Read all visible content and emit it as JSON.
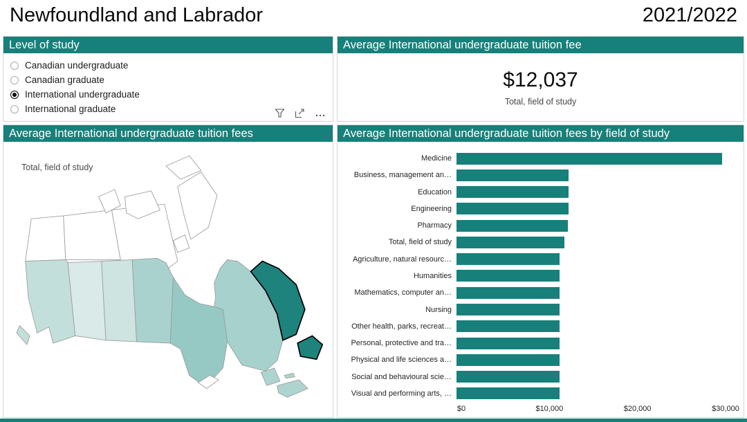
{
  "theme": {
    "accent": "#17807A"
  },
  "header": {
    "title": "Newfoundland and Labrador",
    "year": "2021/2022"
  },
  "level_panel": {
    "title": "Level of study",
    "options": [
      {
        "label": "Canadian undergraduate",
        "selected": false
      },
      {
        "label": "Canadian graduate",
        "selected": false
      },
      {
        "label": "International undergraduate",
        "selected": true
      },
      {
        "label": "International graduate",
        "selected": false
      }
    ]
  },
  "kpi_panel": {
    "title": "Average International undergraduate tuition fee",
    "value": "$12,037",
    "subtitle": "Total, field of study"
  },
  "map_panel": {
    "title": "Average International undergraduate tuition fees",
    "label": "Total, field of study",
    "province_fills": {
      "territories": "#ffffff",
      "bc": "#c3dfdc",
      "vancouver-island": "#c3dfdc",
      "ab": "#d9eae8",
      "sk": "#cde4e1",
      "mb": "#a9d2ce",
      "on": "#96c9c4",
      "qc": "#a6d1cd",
      "nb": "#aed4d0",
      "ns": "#aed4d0",
      "pe": "#aed4d0",
      "nl-labrador": "#1e837d",
      "nl-island": "#1e837d",
      "lake": "#ffffff"
    }
  },
  "chart_panel": {
    "title": "Average International undergraduate tuition fees by field of study"
  },
  "chart_data": {
    "type": "bar",
    "orientation": "horizontal",
    "title": "Average International undergraduate tuition fees by field of study",
    "categories": [
      "Medicine",
      "Business, management an…",
      "Education",
      "Engineering",
      "Pharmacy",
      "Total, field of study",
      "Agriculture, natural resourc…",
      "Humanities",
      "Mathematics, computer an…",
      "Nursing",
      "Other health, parks, recreat…",
      "Personal, protective and tra…",
      "Physical and life sciences a…",
      "Social and behavioural scie…",
      "Visual and performing arts, …"
    ],
    "values": [
      29600,
      12460,
      12460,
      12460,
      12410,
      12037,
      11460,
      11460,
      11460,
      11460,
      11460,
      11460,
      11460,
      11460,
      11460
    ],
    "xlim": [
      0,
      30000
    ],
    "x_ticks": [
      {
        "value": 0,
        "label": "$0"
      },
      {
        "value": 10000,
        "label": "$10,000"
      },
      {
        "value": 20000,
        "label": "$20,000"
      },
      {
        "value": 30000,
        "label": "$30,000"
      }
    ],
    "bar_color": "#17807A",
    "grid": false,
    "legend": false
  }
}
